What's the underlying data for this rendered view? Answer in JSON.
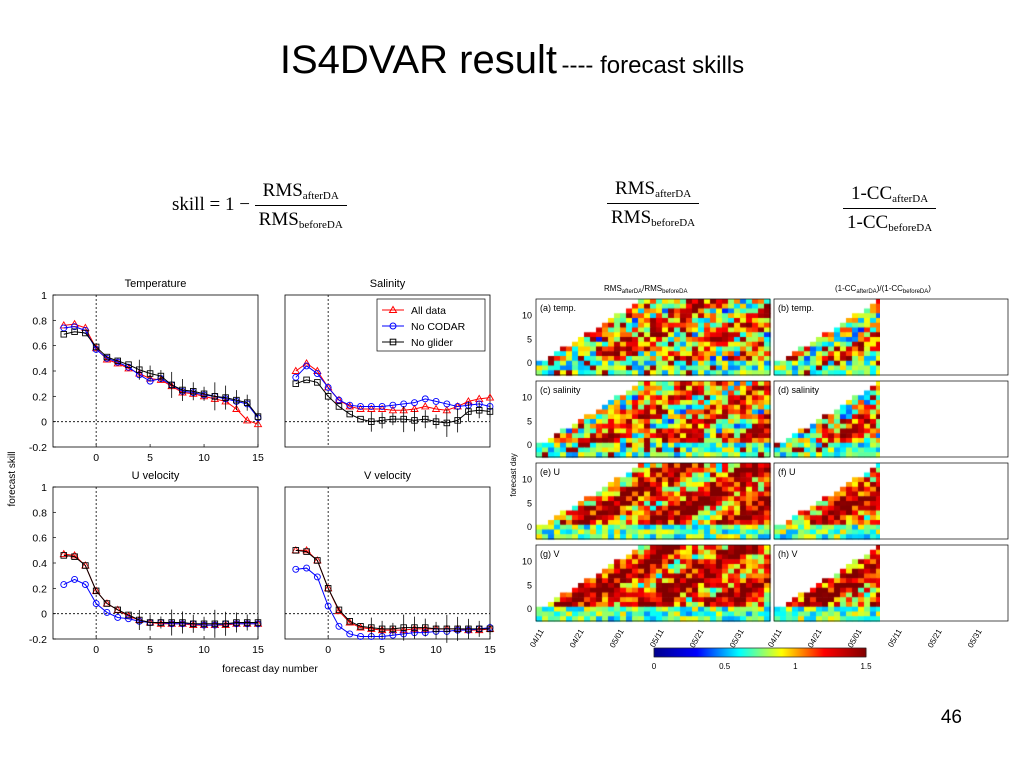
{
  "slide": {
    "title_main": "IS4DVAR result",
    "title_sub": "---- forecast skills",
    "page_number": "46"
  },
  "formulas": {
    "f1": {
      "lhs": "skill = 1 −",
      "num": "RMS",
      "num_sub": "afterDA",
      "den": "RMS",
      "den_sub": "beforeDA"
    },
    "f2": {
      "num": "RMS",
      "num_sub": "afterDA",
      "den": "RMS",
      "den_sub": "beforeDA"
    },
    "f3": {
      "num": "1-CC",
      "num_sub": "afterDA",
      "den": "1-CC",
      "den_sub": "beforeDA"
    }
  },
  "chart_data": [
    {
      "type": "line",
      "title": "Temperature",
      "xlabel": "forecast day number",
      "ylabel": "forecast skill",
      "xlim": [
        -4,
        15
      ],
      "ylim": [
        -0.2,
        1
      ],
      "xticks": [
        0,
        5,
        10,
        15
      ],
      "yticks": [
        1,
        0.8,
        0.6,
        0.4,
        0.2,
        0,
        -0.2
      ],
      "x": [
        -3,
        -2,
        -1,
        0,
        1,
        2,
        3,
        4,
        5,
        6,
        7,
        8,
        9,
        10,
        11,
        12,
        13,
        14,
        15
      ],
      "series": [
        {
          "name": "All data",
          "color": "#ff0000",
          "marker": "triangle",
          "values": [
            0.76,
            0.77,
            0.74,
            0.58,
            0.49,
            0.46,
            0.42,
            0.38,
            0.34,
            0.33,
            0.28,
            0.23,
            0.22,
            0.2,
            0.18,
            0.16,
            0.1,
            0.01,
            -0.02
          ]
        },
        {
          "name": "No CODAR",
          "color": "#0000ff",
          "marker": "circle",
          "values": [
            0.74,
            0.75,
            0.72,
            0.57,
            0.5,
            0.47,
            0.43,
            0.37,
            0.32,
            0.34,
            0.29,
            0.24,
            0.23,
            0.21,
            0.2,
            0.18,
            0.16,
            0.14,
            0.03
          ]
        },
        {
          "name": "No glider",
          "color": "#000000",
          "marker": "square",
          "values": [
            0.69,
            0.71,
            0.7,
            0.59,
            0.51,
            0.48,
            0.45,
            0.41,
            0.38,
            0.36,
            0.29,
            0.25,
            0.24,
            0.22,
            0.2,
            0.19,
            0.17,
            0.15,
            0.04
          ]
        }
      ]
    },
    {
      "type": "line",
      "title": "Salinity",
      "xlim": [
        -4,
        15
      ],
      "ylim": [
        -0.2,
        1
      ],
      "xticks": [],
      "yticks": [],
      "legend": "top-right",
      "x": [
        -3,
        -2,
        -1,
        0,
        1,
        2,
        3,
        4,
        5,
        6,
        7,
        8,
        9,
        10,
        11,
        12,
        13,
        14,
        15
      ],
      "series": [
        {
          "name": "All data",
          "color": "#ff0000",
          "marker": "triangle",
          "values": [
            0.4,
            0.46,
            0.4,
            0.27,
            0.17,
            0.12,
            0.1,
            0.1,
            0.1,
            0.09,
            0.09,
            0.1,
            0.12,
            0.1,
            0.09,
            0.12,
            0.16,
            0.18,
            0.19
          ]
        },
        {
          "name": "No CODAR",
          "color": "#0000ff",
          "marker": "circle",
          "values": [
            0.35,
            0.44,
            0.38,
            0.27,
            0.17,
            0.13,
            0.12,
            0.12,
            0.12,
            0.13,
            0.14,
            0.15,
            0.18,
            0.16,
            0.14,
            0.12,
            0.13,
            0.14,
            0.12
          ]
        },
        {
          "name": "No glider",
          "color": "#000000",
          "marker": "square",
          "values": [
            0.3,
            0.33,
            0.31,
            0.2,
            0.12,
            0.06,
            0.02,
            0.0,
            0.01,
            0.02,
            0.02,
            0.01,
            0.02,
            0.0,
            -0.01,
            0.01,
            0.08,
            0.09,
            0.08
          ]
        }
      ]
    },
    {
      "type": "line",
      "title": "U velocity",
      "xlim": [
        -4,
        15
      ],
      "ylim": [
        -0.2,
        1
      ],
      "xticks": [
        0,
        5,
        10,
        15
      ],
      "yticks": [
        1,
        0.8,
        0.6,
        0.4,
        0.2,
        0,
        -0.2
      ],
      "x": [
        -3,
        -2,
        -1,
        0,
        1,
        2,
        3,
        4,
        5,
        6,
        7,
        8,
        9,
        10,
        11,
        12,
        13,
        14,
        15
      ],
      "series": [
        {
          "name": "All data",
          "color": "#ff0000",
          "marker": "triangle",
          "values": [
            0.47,
            0.46,
            0.38,
            0.18,
            0.08,
            0.03,
            -0.02,
            -0.05,
            -0.07,
            -0.08,
            -0.08,
            -0.08,
            -0.09,
            -0.09,
            -0.09,
            -0.09,
            -0.08,
            -0.08,
            -0.08
          ]
        },
        {
          "name": "No CODAR",
          "color": "#0000ff",
          "marker": "circle",
          "values": [
            0.23,
            0.27,
            0.23,
            0.08,
            0.01,
            -0.03,
            -0.04,
            -0.06,
            -0.07,
            -0.07,
            -0.08,
            -0.08,
            -0.08,
            -0.09,
            -0.09,
            -0.08,
            -0.08,
            -0.08,
            -0.08
          ]
        },
        {
          "name": "No glider",
          "color": "#000000",
          "marker": "square",
          "values": [
            0.46,
            0.45,
            0.38,
            0.18,
            0.08,
            0.03,
            -0.01,
            -0.05,
            -0.07,
            -0.07,
            -0.07,
            -0.07,
            -0.08,
            -0.08,
            -0.08,
            -0.08,
            -0.07,
            -0.07,
            -0.07
          ]
        }
      ]
    },
    {
      "type": "line",
      "title": "V velocity",
      "xlim": [
        -4,
        15
      ],
      "ylim": [
        -0.2,
        1
      ],
      "xticks": [
        0,
        5,
        10,
        15
      ],
      "yticks": [],
      "x": [
        -3,
        -2,
        -1,
        0,
        1,
        2,
        3,
        4,
        5,
        6,
        7,
        8,
        9,
        10,
        11,
        12,
        13,
        14,
        15
      ],
      "series": [
        {
          "name": "All data",
          "color": "#ff0000",
          "marker": "triangle",
          "values": [
            0.5,
            0.5,
            0.42,
            0.2,
            0.02,
            -0.07,
            -0.11,
            -0.12,
            -0.13,
            -0.13,
            -0.13,
            -0.12,
            -0.12,
            -0.12,
            -0.12,
            -0.12,
            -0.13,
            -0.13,
            -0.12
          ]
        },
        {
          "name": "No CODAR",
          "color": "#0000ff",
          "marker": "circle",
          "values": [
            0.35,
            0.36,
            0.29,
            0.06,
            -0.1,
            -0.16,
            -0.18,
            -0.18,
            -0.18,
            -0.17,
            -0.16,
            -0.15,
            -0.15,
            -0.14,
            -0.14,
            -0.13,
            -0.13,
            -0.12,
            -0.11
          ]
        },
        {
          "name": "No glider",
          "color": "#000000",
          "marker": "square",
          "values": [
            0.5,
            0.49,
            0.42,
            0.2,
            0.03,
            -0.06,
            -0.1,
            -0.11,
            -0.12,
            -0.12,
            -0.11,
            -0.11,
            -0.11,
            -0.12,
            -0.12,
            -0.12,
            -0.12,
            -0.12,
            -0.12
          ]
        }
      ]
    },
    {
      "type": "heatmap",
      "col_titles": {
        "left": "RMS",
        "left_sub1": "afterDA",
        "left_mid": "/RMS",
        "left_sub2": "beforeDA",
        "right": "(1-CC",
        "right_sub1": "afterDA",
        "right_mid": ")/(1-CC",
        "right_sub2": "beforeDA",
        "right_end": ")"
      },
      "ylabel": "forecast day",
      "yticks": [
        10,
        5,
        0
      ],
      "xticks": [
        "04/11",
        "04/21",
        "05/01",
        "05/11",
        "05/21",
        "05/31"
      ],
      "panels": [
        {
          "label": "(a) temp.",
          "variable": "temp"
        },
        {
          "label": "(b) temp.",
          "variable": "temp"
        },
        {
          "label": "(c) salinity",
          "variable": "salinity"
        },
        {
          "label": "(d) salinity",
          "variable": "salinity"
        },
        {
          "label": "(e) U",
          "variable": "U"
        },
        {
          "label": "(f) U",
          "variable": "U"
        },
        {
          "label": "(g) V",
          "variable": "V"
        },
        {
          "label": "(h) V",
          "variable": "V"
        }
      ],
      "colorbar": {
        "min": 0,
        "max": 1.5,
        "ticks": [
          "0",
          "0.5",
          "1",
          "1.5"
        ],
        "colors": [
          "#00008f",
          "#0000ff",
          "#00ffff",
          "#ffff00",
          "#ff0000",
          "#800000"
        ]
      }
    }
  ]
}
